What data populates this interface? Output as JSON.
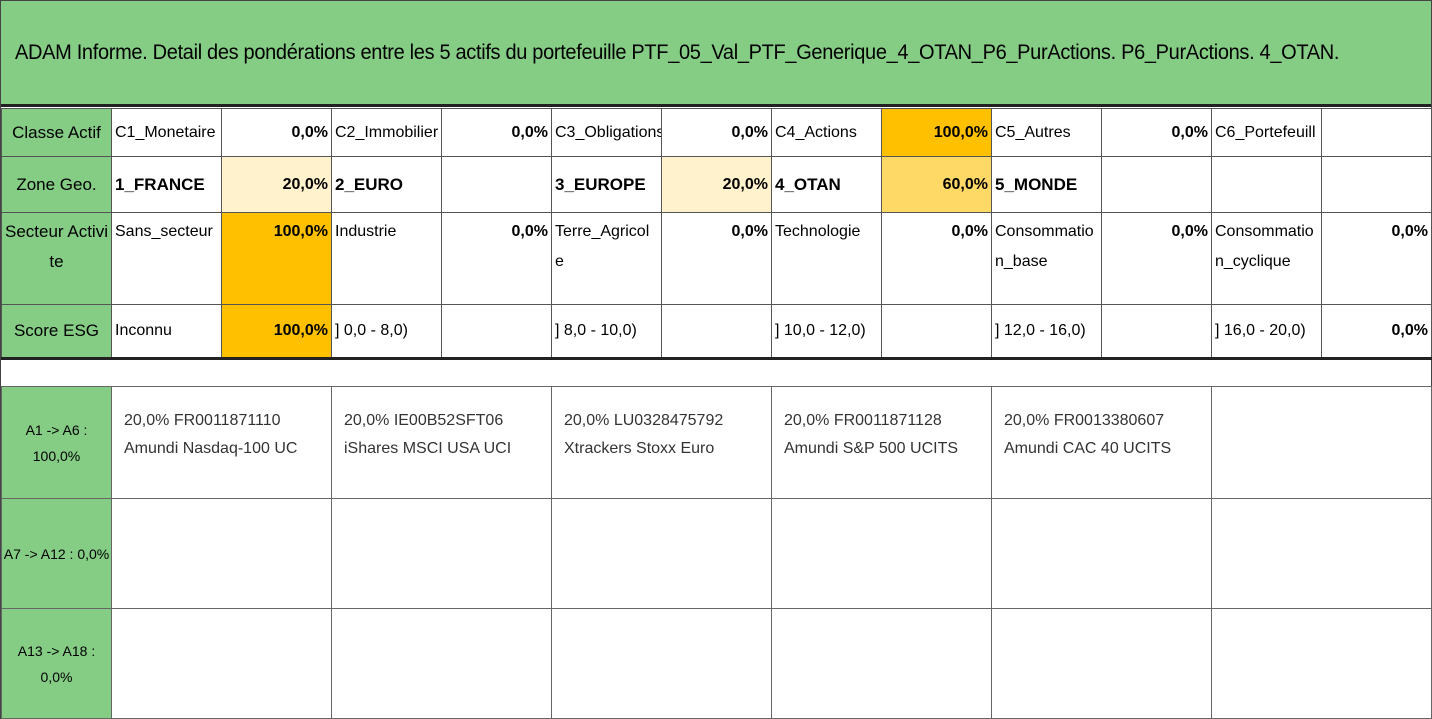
{
  "title": "ADAM Informe. Detail des pondérations entre les 5 actifs du portefeuille PTF_05_Val_PTF_Generique_4_OTAN_P6_PurActions. P6_PurActions. 4_OTAN.",
  "rows": {
    "classe": {
      "label": "Classe Actif",
      "cells": [
        {
          "name": "C1_Monetaire",
          "value": "0,0%"
        },
        {
          "name": "C2_Immobilier",
          "value": "0,0%"
        },
        {
          "name": "C3_Obligations",
          "value": "0,0%"
        },
        {
          "name": "C4_Actions",
          "value": "100,0%"
        },
        {
          "name": "C5_Autres",
          "value": "0,0%"
        },
        {
          "name": "C6_Portefeuill",
          "value": ""
        }
      ]
    },
    "zone": {
      "label": "Zone Geo.",
      "cells": [
        {
          "name": "1_FRANCE",
          "value": "20,0%"
        },
        {
          "name": "2_EURO",
          "value": ""
        },
        {
          "name": "3_EUROPE",
          "value": "20,0%"
        },
        {
          "name": "4_OTAN",
          "value": "60,0%"
        },
        {
          "name": "5_MONDE",
          "value": ""
        },
        {
          "name": "",
          "value": ""
        }
      ]
    },
    "secteur": {
      "label": "Secteur Activite",
      "cells": [
        {
          "name": "Sans_secteur",
          "value": "100,0%"
        },
        {
          "name": "Industrie",
          "value": "0,0%"
        },
        {
          "name": "Terre_Agricole",
          "value": "0,0%"
        },
        {
          "name": "Technologie",
          "value": "0,0%"
        },
        {
          "name": "Consommation_base",
          "value": "0,0%"
        },
        {
          "name": "Consommation_cyclique",
          "value": "0,0%"
        }
      ]
    },
    "esg": {
      "label": "Score ESG",
      "cells": [
        {
          "name": "Inconnu",
          "value": "100,0%"
        },
        {
          "name": "] 0,0 - 8,0)",
          "value": ""
        },
        {
          "name": "] 8,0 - 10,0)",
          "value": ""
        },
        {
          "name": "] 10,0 - 12,0)",
          "value": ""
        },
        {
          "name": "] 12,0 - 16,0)",
          "value": ""
        },
        {
          "name": "] 16,0 - 20,0)",
          "value": "0,0%"
        }
      ]
    }
  },
  "asset_groups": [
    {
      "label": "A1 -> A6 : 100,0%",
      "assets": [
        {
          "line1": "20,0% FR0011871110",
          "line2": "Amundi Nasdaq-100 UC"
        },
        {
          "line1": "20,0% IE00B52SFT06",
          "line2": "iShares MSCI USA UCI"
        },
        {
          "line1": "20,0% LU0328475792",
          "line2": "Xtrackers Stoxx Euro"
        },
        {
          "line1": "20,0% FR0011871128",
          "line2": "Amundi S&P 500 UCITS"
        },
        {
          "line1": "20,0% FR0013380607",
          "line2": "Amundi CAC 40 UCITS"
        },
        {
          "line1": "",
          "line2": ""
        }
      ]
    },
    {
      "label": "A7 -> A12 : 0,0%",
      "assets": []
    },
    {
      "label": "A13 -> A18 : 0,0%",
      "assets": []
    }
  ],
  "colors": {
    "header_green": "#85cc85",
    "highlight_strong": "#ffc000",
    "highlight_mid": "#ffd966",
    "highlight_light": "#fff2cc"
  }
}
